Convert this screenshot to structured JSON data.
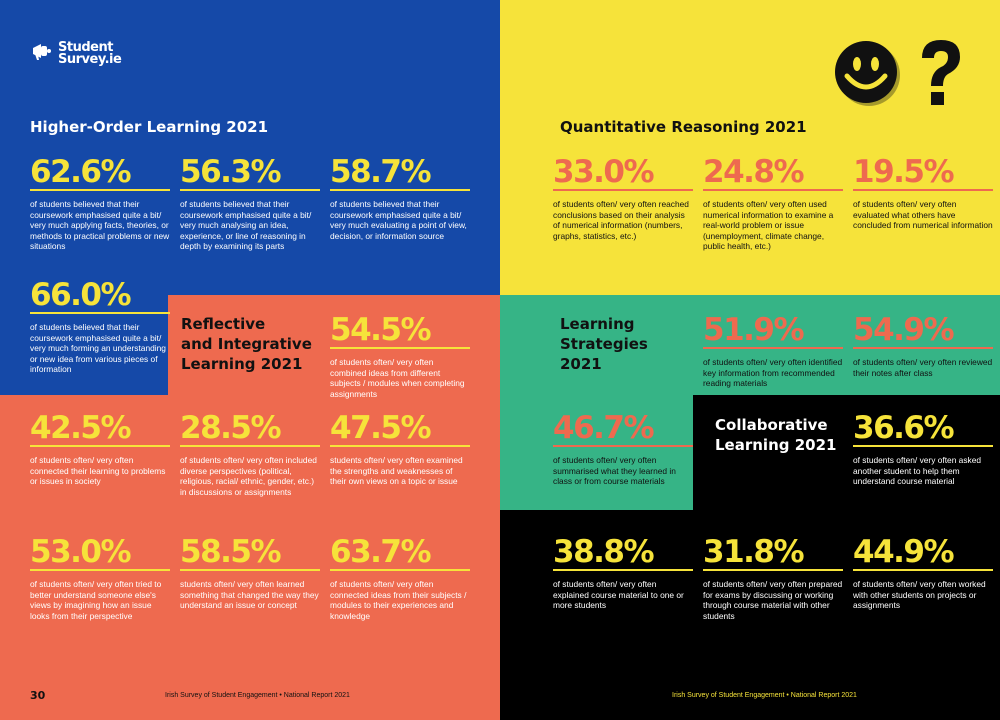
{
  "brand": {
    "line1": "Student",
    "line2": "Survey.ie"
  },
  "colors": {
    "blue": "#1549a8",
    "coral": "#ee6a4f",
    "yellow": "#f6e33a",
    "teal": "#36b486",
    "black": "#000000"
  },
  "icons": [
    "megaphone-icon",
    "smiley-face-icon",
    "question-mark-icon"
  ],
  "higher_order": {
    "title": "Higher-Order Learning 2021",
    "stats": [
      {
        "pct": "62.6%",
        "text": "of students believed that their coursework emphasised quite a bit/ very much applying facts, theories, or methods to practical problems or new situations"
      },
      {
        "pct": "56.3%",
        "text": "of students believed that their coursework emphasised quite a bit/ very much analysing an idea, experience, or line of reasoning in depth by examining its parts"
      },
      {
        "pct": "58.7%",
        "text": "of students believed that their coursework emphasised quite a bit/ very much evaluating a point of view, decision, or information source"
      },
      {
        "pct": "66.0%",
        "text": "of students believed that their coursework emphasised quite a bit/ very much forming an understanding or new idea from various pieces of information"
      }
    ]
  },
  "reflective": {
    "title_line1": "Reflective",
    "title_line2": "and Integrative",
    "title_line3": "Learning 2021",
    "stats": [
      {
        "pct": "54.5%",
        "text": "of students often/ very often combined ideas from different subjects / modules when completing assignments"
      },
      {
        "pct": "42.5%",
        "text": "of students often/ very often connected their learning to problems or issues in society"
      },
      {
        "pct": "28.5%",
        "text": "of students often/ very often included diverse perspectives (political, religious, racial/ ethnic, gender, etc.) in discussions or assignments"
      },
      {
        "pct": "47.5%",
        "text": "students often/ very often examined the strengths and weaknesses of their own views on a topic or issue"
      },
      {
        "pct": "53.0%",
        "text": "of students often/ very often tried to better understand someone else's views by imagining how an issue looks from their perspective"
      },
      {
        "pct": "58.5%",
        "text": "students often/ very often learned something that changed the way they understand an issue or concept"
      },
      {
        "pct": "63.7%",
        "text": "of students often/ very often connected ideas from their subjects / modules to their experiences and knowledge"
      }
    ]
  },
  "quantitative": {
    "title": "Quantitative Reasoning 2021",
    "stats": [
      {
        "pct": "33.0%",
        "text": "of students often/ very often reached conclusions based on their analysis of numerical information (numbers, graphs, statistics, etc.)"
      },
      {
        "pct": "24.8%",
        "text": "of students often/ very often used numerical information to examine a real-world problem or issue (unemployment, climate change, public health, etc.)"
      },
      {
        "pct": "19.5%",
        "text": "of students often/ very often evaluated what others have concluded from numerical information"
      }
    ]
  },
  "learning_strategies": {
    "title_line1": "Learning",
    "title_line2": "Strategies",
    "title_line3": "2021",
    "stats": [
      {
        "pct": "51.9%",
        "text": "of students often/ very often identified key information from recommended reading materials"
      },
      {
        "pct": "54.9%",
        "text": "of students often/ very often reviewed their notes after class"
      },
      {
        "pct": "46.7%",
        "text": "of students often/ very often summarised what they learned in class or from course materials"
      }
    ]
  },
  "collaborative": {
    "title_line1": "Collaborative",
    "title_line2": "Learning 2021",
    "stats": [
      {
        "pct": "36.6%",
        "text": "of students often/ very often asked another student to help them understand course material"
      },
      {
        "pct": "38.8%",
        "text": "of students often/ very often explained course material to one or more students"
      },
      {
        "pct": "31.8%",
        "text": "of students often/ very often prepared for exams by discussing or working through course material with other students"
      },
      {
        "pct": "44.9%",
        "text": "of students often/ very often worked with other students on projects or assignments"
      }
    ]
  },
  "footer": {
    "page_number": "30",
    "left": "Irish Survey of Student Engagement • National Report 2021",
    "right": "Irish Survey of Student Engagement • National Report 2021"
  }
}
